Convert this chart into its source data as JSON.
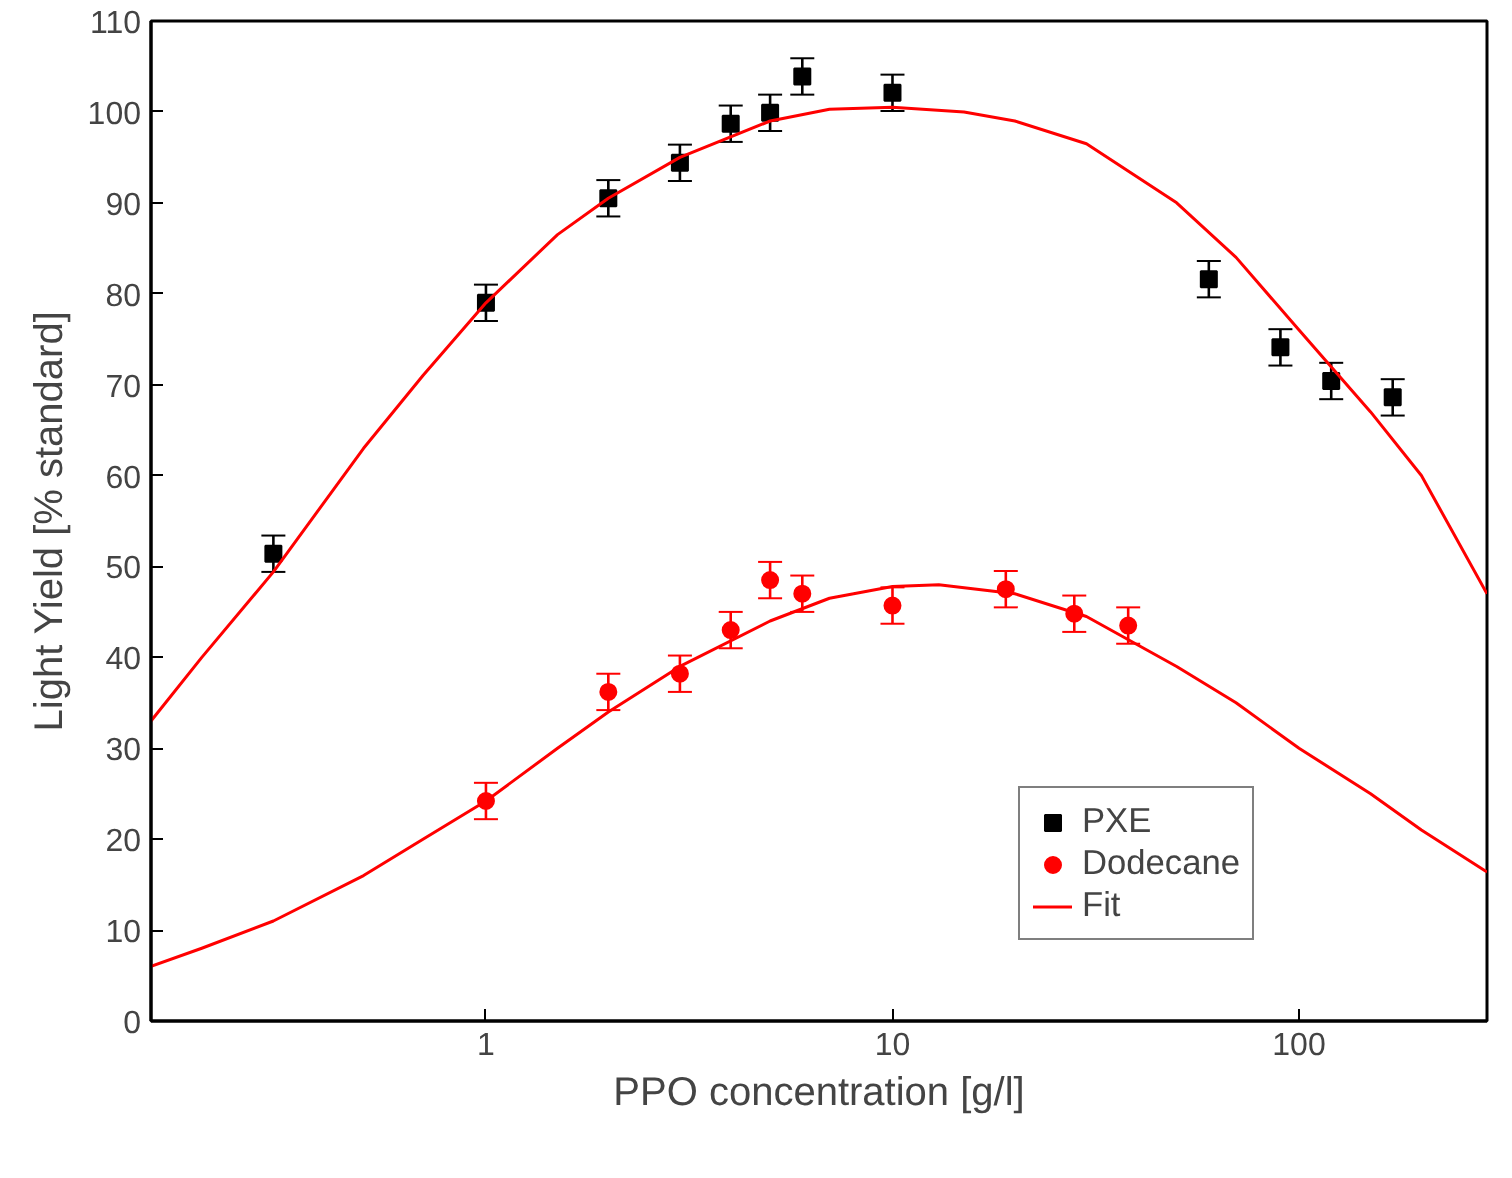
{
  "chart_data": {
    "type": "scatter",
    "xlabel": "PPO concentration [g/l]",
    "ylabel": "Light Yield [% standard]",
    "log": "x",
    "xlim": [
      0.15,
      290
    ],
    "xticks": [
      1,
      10,
      100
    ],
    "ylim": [
      0,
      110
    ],
    "yticks": [
      0,
      10,
      20,
      30,
      40,
      50,
      60,
      70,
      80,
      90,
      100,
      110
    ],
    "grid": false,
    "legend": "bottom right",
    "series": [
      {
        "name": "PXE",
        "marker": "square",
        "color": "#000000",
        "x": [
          0.3,
          1,
          2,
          3,
          4,
          5,
          6,
          10,
          60,
          90,
          120,
          170
        ],
        "values": [
          51.4,
          79.0,
          90.5,
          94.4,
          98.7,
          99.9,
          103.9,
          102.1,
          81.6,
          74.1,
          70.4,
          68.6
        ],
        "errors": [
          2,
          2,
          2,
          2,
          2,
          2,
          2,
          2,
          2,
          2,
          2,
          2
        ]
      },
      {
        "name": "Dodecane",
        "marker": "circle",
        "color": "#ff0000",
        "x": [
          1,
          2,
          3,
          4,
          5,
          6,
          10,
          19,
          28,
          38
        ],
        "values": [
          24.2,
          36.2,
          38.2,
          43.0,
          48.5,
          47.0,
          45.7,
          47.5,
          44.8,
          43.5
        ],
        "errors": [
          2,
          2,
          2,
          2,
          2,
          2,
          2,
          2,
          2,
          2
        ]
      },
      {
        "name": "Fit",
        "type": "line",
        "color": "#ff0000",
        "x": [
          0.15,
          0.2,
          0.3,
          0.5,
          0.7,
          1,
          1.5,
          2,
          3,
          5,
          7,
          10,
          15,
          20,
          30,
          50,
          70,
          100,
          150,
          200,
          290
        ],
        "values": [
          33,
          40,
          49.4,
          63,
          71,
          79,
          86.5,
          90.5,
          95,
          99,
          100.3,
          100.5,
          100,
          99,
          96.5,
          90,
          84,
          76,
          67,
          60,
          47
        ]
      },
      {
        "type": "line",
        "color": "#ff0000",
        "x": [
          0.15,
          0.2,
          0.3,
          0.5,
          0.7,
          1,
          1.5,
          2,
          3,
          5,
          7,
          10,
          13,
          20,
          30,
          50,
          70,
          100,
          150,
          200,
          290
        ],
        "values": [
          6,
          8,
          11,
          16,
          20,
          24.2,
          30,
          34,
          39,
          44,
          46.5,
          47.8,
          48,
          47,
          44.5,
          39,
          35,
          30,
          25,
          21,
          16.4
        ]
      }
    ]
  }
}
